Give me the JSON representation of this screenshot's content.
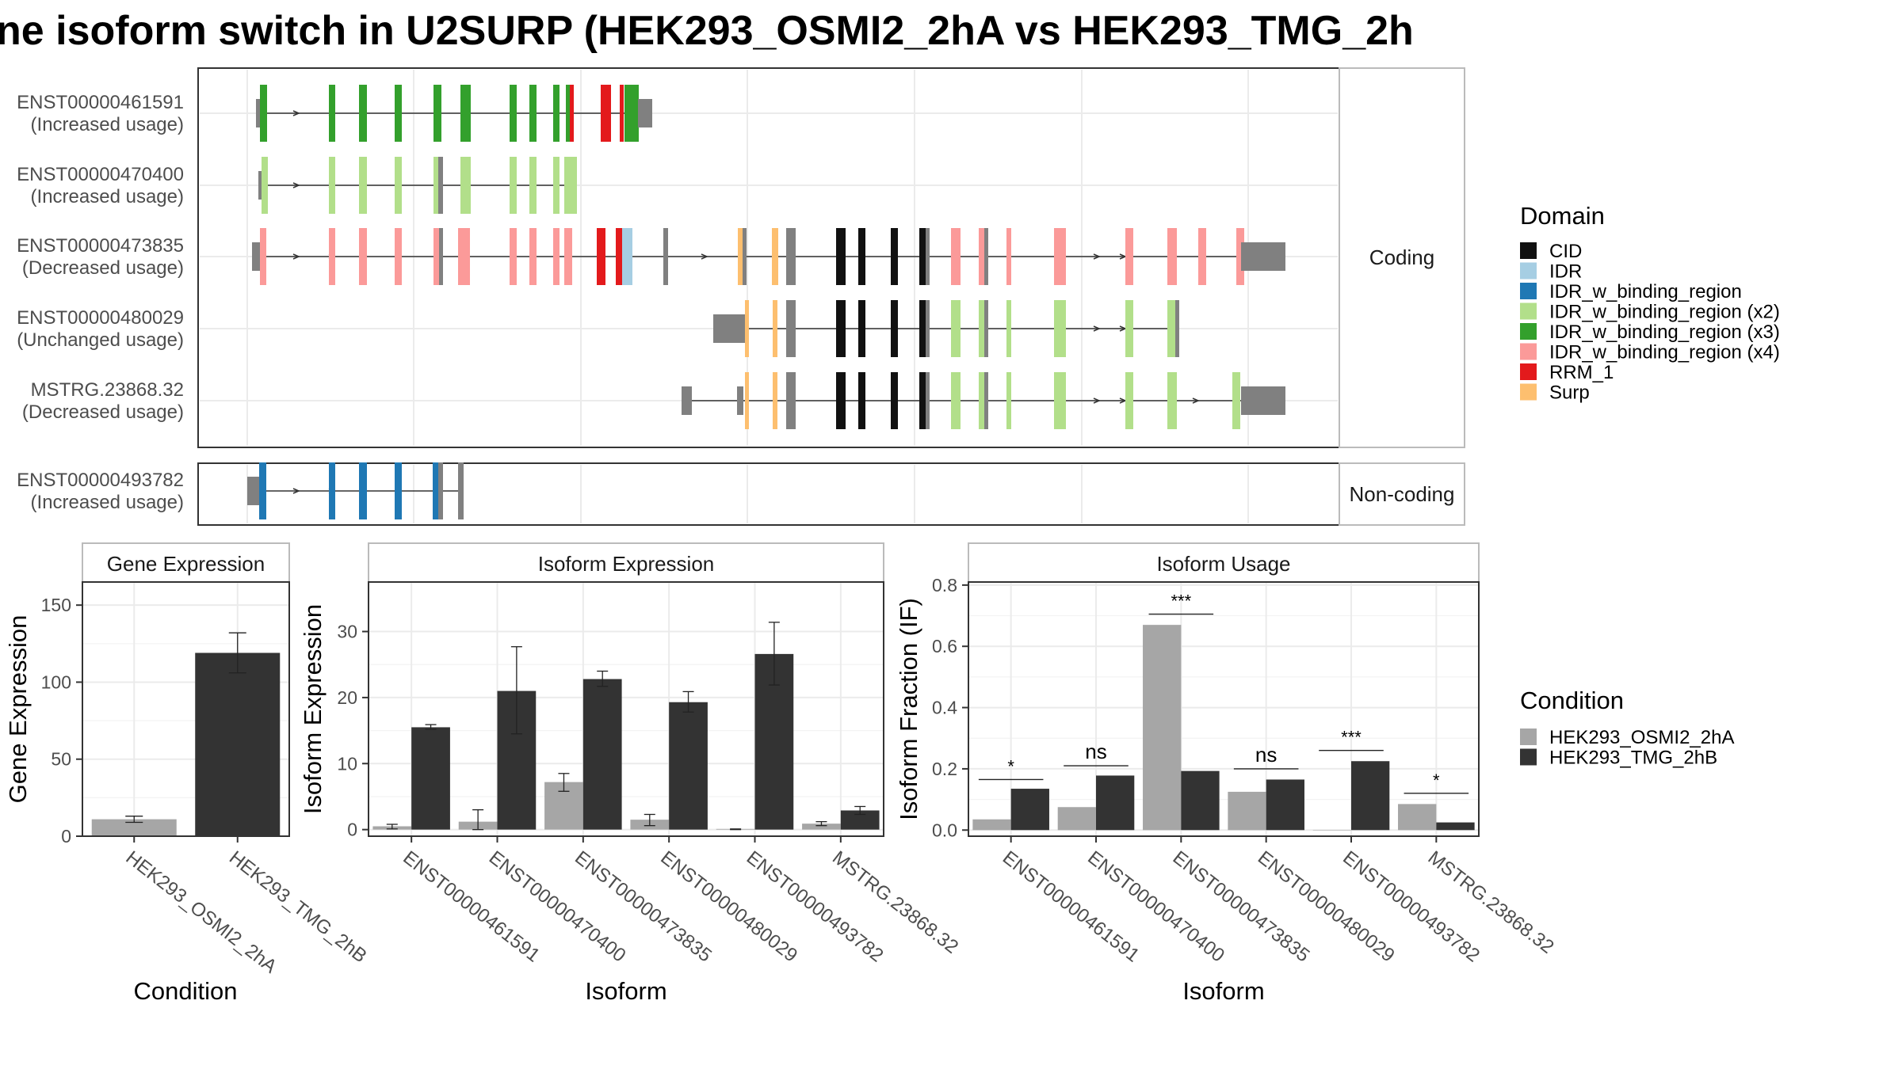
{
  "title": "ne isoform switch in U2SURP (HEK293_OSMI2_2hA vs HEK293_TMG_2h",
  "colors": {
    "condition_a": "#a6a6a6",
    "condition_b": "#333333",
    "utr": "#808080",
    "domains": {
      "CID": "#111111",
      "IDR": "#a6cee3",
      "IDR_w_binding_region": "#1f78b4",
      "IDR_w_binding_region (x2)": "#b2df8a",
      "IDR_w_binding_region (x3)": "#33a02c",
      "IDR_w_binding_region (x4)": "#fb9a99",
      "RRM_1": "#e31a1c",
      "Surp": "#fdbf6f"
    }
  },
  "domain_legend": {
    "title": "Domain",
    "items": [
      "CID",
      "IDR",
      "IDR_w_binding_region",
      "IDR_w_binding_region (x2)",
      "IDR_w_binding_region (x3)",
      "IDR_w_binding_region (x4)",
      "RRM_1",
      "Surp"
    ]
  },
  "condition_legend": {
    "title": "Condition",
    "items": [
      "HEK293_OSMI2_2hA",
      "HEK293_TMG_2hB"
    ]
  },
  "coding_label": "Coding",
  "noncoding_label": "Non-coding",
  "transcripts": [
    {
      "id": "ENST00000461591",
      "usage": "(Increased usage)",
      "panel": "coding"
    },
    {
      "id": "ENST00000470400",
      "usage": "(Increased usage)",
      "panel": "coding"
    },
    {
      "id": "ENST00000473835",
      "usage": "(Decreased usage)",
      "panel": "coding"
    },
    {
      "id": "ENST00000480029",
      "usage": "(Unchanged usage)",
      "panel": "coding"
    },
    {
      "id": "MSTRG.23868.32",
      "usage": "(Decreased usage)",
      "panel": "coding"
    },
    {
      "id": "ENST00000493782",
      "usage": "(Increased usage)",
      "panel": "noncoding"
    }
  ],
  "chart_data": [
    {
      "type": "bar",
      "title": "Gene Expression",
      "xlabel": "Condition",
      "ylabel": "Gene Expression",
      "categories": [
        "HEK293_OSMI2_2hA",
        "HEK293_TMG_2hB"
      ],
      "values": [
        11,
        119
      ],
      "errors": [
        [
          9,
          13
        ],
        [
          106,
          132
        ]
      ],
      "ylim": [
        0,
        165
      ],
      "yticks": [
        0,
        50,
        100,
        150
      ]
    },
    {
      "type": "bar",
      "title": "Isoform Expression",
      "xlabel": "Isoform",
      "ylabel": "Isoform Expression",
      "categories": [
        "ENST00000461591",
        "ENST00000470400",
        "ENST00000473835",
        "ENST00000480029",
        "ENST00000493782",
        "MSTRG.23868.32"
      ],
      "series": [
        {
          "name": "HEK293_OSMI2_2hA",
          "values": [
            0.5,
            1.2,
            7.2,
            1.5,
            0.1,
            0.9
          ],
          "errors": [
            [
              0.1,
              0.8
            ],
            [
              0,
              3.0
            ],
            [
              5.8,
              8.5
            ],
            [
              0.6,
              2.3
            ],
            [
              0,
              0.1
            ],
            [
              0.6,
              1.2
            ]
          ]
        },
        {
          "name": "HEK293_TMG_2hB",
          "values": [
            15.5,
            21.0,
            22.8,
            19.3,
            26.6,
            2.9
          ],
          "errors": [
            [
              15.2,
              15.9
            ],
            [
              14.5,
              27.7
            ],
            [
              21.7,
              24.0
            ],
            [
              17.8,
              20.9
            ],
            [
              21.9,
              31.4
            ],
            [
              2.3,
              3.5
            ]
          ]
        }
      ],
      "ylim": [
        -1,
        37.5
      ],
      "yticks": [
        0,
        10,
        20,
        30
      ]
    },
    {
      "type": "bar",
      "title": "Isoform Usage",
      "xlabel": "Isoform",
      "ylabel": "Isoform Fraction (IF)",
      "categories": [
        "ENST00000461591",
        "ENST00000470400",
        "ENST00000473835",
        "ENST00000480029",
        "ENST00000493782",
        "MSTRG.23868.32"
      ],
      "series": [
        {
          "name": "HEK293_OSMI2_2hA",
          "values": [
            0.035,
            0.075,
            0.67,
            0.125,
            0.0,
            0.085
          ]
        },
        {
          "name": "HEK293_TMG_2hB",
          "values": [
            0.135,
            0.178,
            0.193,
            0.165,
            0.225,
            0.025
          ]
        }
      ],
      "significance": [
        "*",
        "ns",
        "***",
        "ns",
        "***",
        "*"
      ],
      "significance_y": [
        0.165,
        0.21,
        0.705,
        0.2,
        0.26,
        0.12
      ],
      "ylim": [
        -0.02,
        0.81
      ],
      "yticks": [
        0.0,
        0.2,
        0.4,
        0.6,
        0.8
      ],
      "ytick_labels": [
        "0.0",
        "0.2",
        "0.4",
        "0.6",
        "0.8"
      ]
    }
  ]
}
